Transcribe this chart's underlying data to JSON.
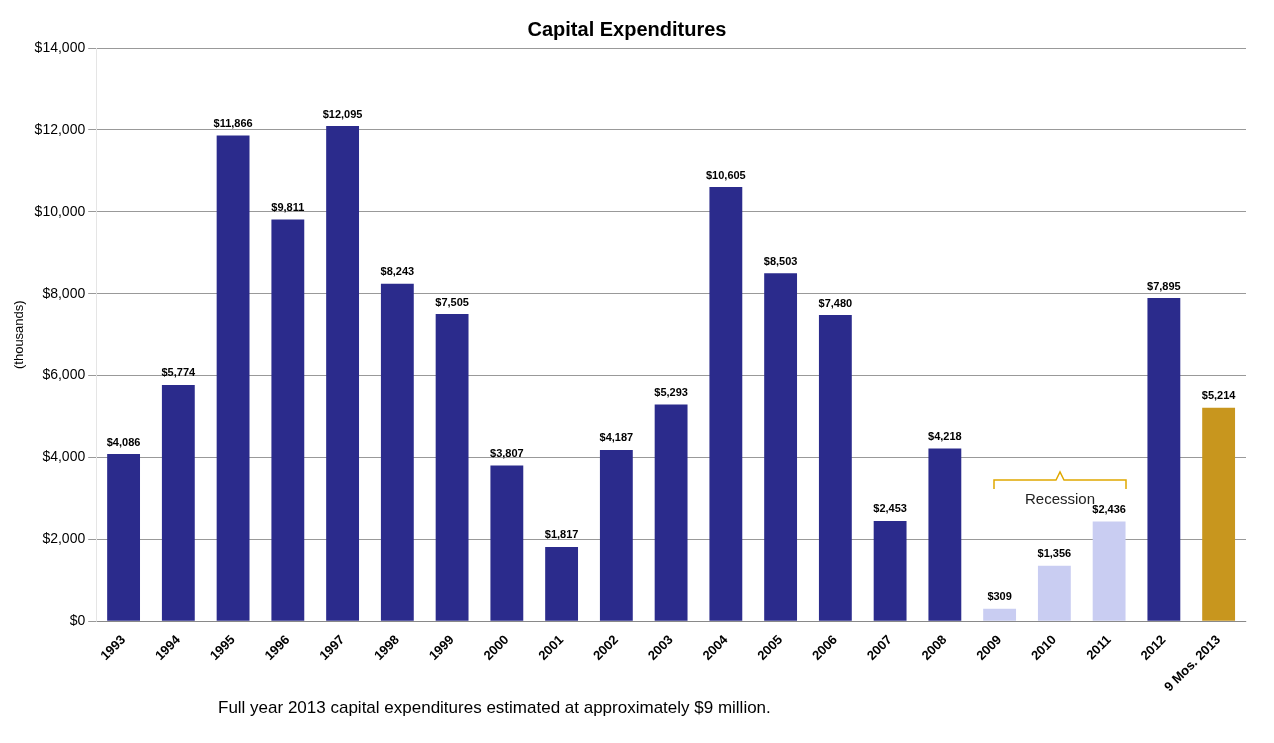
{
  "chart_data": {
    "type": "bar",
    "title": "Capital Expenditures",
    "ylabel": "(thousands)",
    "categories": [
      "1993",
      "1994",
      "1995",
      "1996",
      "1997",
      "1998",
      "1999",
      "2000",
      "2001",
      "2002",
      "2003",
      "2004",
      "2005",
      "2006",
      "2007",
      "2008",
      "2009",
      "2010",
      "2011",
      "2012",
      "9 Mos. 2013"
    ],
    "values": [
      4086,
      5774,
      11866,
      9811,
      12095,
      8243,
      7505,
      3807,
      1817,
      4187,
      5293,
      10605,
      8503,
      7480,
      2453,
      4218,
      309,
      1356,
      2436,
      7895,
      5214
    ],
    "value_labels": [
      "$4,086",
      "$5,774",
      "$11,866",
      "$9,811",
      "$12,095",
      "$8,243",
      "$7,505",
      "$3,807",
      "$1,817",
      "$4,187",
      "$5,293",
      "$10,605",
      "$8,503",
      "$7,480",
      "$2,453",
      "$4,218",
      "$309",
      "$1,356",
      "$2,436",
      "$7,895",
      "$5,214"
    ],
    "colors": [
      "#2b2b8c",
      "#2b2b8c",
      "#2b2b8c",
      "#2b2b8c",
      "#2b2b8c",
      "#2b2b8c",
      "#2b2b8c",
      "#2b2b8c",
      "#2b2b8c",
      "#2b2b8c",
      "#2b2b8c",
      "#2b2b8c",
      "#2b2b8c",
      "#2b2b8c",
      "#2b2b8c",
      "#2b2b8c",
      "#c9cdf2",
      "#c9cdf2",
      "#c9cdf2",
      "#2b2b8c",
      "#c8961e"
    ],
    "ylim": [
      0,
      14000
    ],
    "yticks": [
      {
        "value": 0,
        "label": "$0"
      },
      {
        "value": 2000,
        "label": "$2,000"
      },
      {
        "value": 4000,
        "label": "$4,000"
      },
      {
        "value": 6000,
        "label": "$6,000"
      },
      {
        "value": 8000,
        "label": "$8,000"
      },
      {
        "value": 10000,
        "label": "$10,000"
      },
      {
        "value": 12000,
        "label": "$12,000"
      },
      {
        "value": 14000,
        "label": "$14,000"
      }
    ],
    "grid": "y",
    "legend": false,
    "annotations": [
      "Recession",
      "Full year 2013 capital expenditures estimated at approximately $9 million."
    ]
  }
}
